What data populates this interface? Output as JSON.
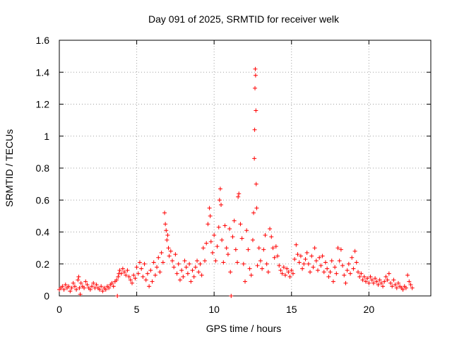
{
  "chart_data": {
    "type": "scatter",
    "title": "Day 091 of 2025, SRMTID for receiver welk",
    "xlabel": "GPS time / hours",
    "ylabel": "SRMTID / TECUs",
    "xlim": [
      0,
      24
    ],
    "ylim": [
      0,
      1.6
    ],
    "x_ticks": [
      "0",
      "5",
      "10",
      "15",
      "20"
    ],
    "x_tick_values": [
      0,
      5,
      10,
      15,
      20
    ],
    "y_ticks": [
      "0",
      "0.2",
      "0.4",
      "0.6",
      "0.8",
      "1",
      "1.2",
      "1.4",
      "1.6"
    ],
    "y_tick_values": [
      0,
      0.2,
      0.4,
      0.6,
      0.8,
      1.0,
      1.2,
      1.4,
      1.6
    ],
    "grid": true,
    "marker": "+",
    "marker_color": "#ff0000",
    "series": [
      {
        "name": "SRMTID",
        "points": [
          [
            0.0,
            0.04
          ],
          [
            0.1,
            0.05
          ],
          [
            0.2,
            0.06
          ],
          [
            0.3,
            0.04
          ],
          [
            0.4,
            0.07
          ],
          [
            0.5,
            0.05
          ],
          [
            0.6,
            0.06
          ],
          [
            0.7,
            0.03
          ],
          [
            0.8,
            0.05
          ],
          [
            0.9,
            0.08
          ],
          [
            1.0,
            0.06
          ],
          [
            1.1,
            0.04
          ],
          [
            1.2,
            0.1
          ],
          [
            1.25,
            0.12
          ],
          [
            1.3,
            0.05
          ],
          [
            1.35,
            0.01
          ],
          [
            1.4,
            0.08
          ],
          [
            1.5,
            0.06
          ],
          [
            1.6,
            0.05
          ],
          [
            1.7,
            0.09
          ],
          [
            1.8,
            0.07
          ],
          [
            1.9,
            0.05
          ],
          [
            2.0,
            0.04
          ],
          [
            2.1,
            0.06
          ],
          [
            2.2,
            0.08
          ],
          [
            2.3,
            0.05
          ],
          [
            2.4,
            0.07
          ],
          [
            2.5,
            0.05
          ],
          [
            2.6,
            0.04
          ],
          [
            2.7,
            0.06
          ],
          [
            2.8,
            0.03
          ],
          [
            2.9,
            0.05
          ],
          [
            3.0,
            0.04
          ],
          [
            3.1,
            0.06
          ],
          [
            3.2,
            0.05
          ],
          [
            3.3,
            0.07
          ],
          [
            3.4,
            0.08
          ],
          [
            3.5,
            0.06
          ],
          [
            3.6,
            0.09
          ],
          [
            3.7,
            0.1
          ],
          [
            3.75,
            0.0
          ],
          [
            3.8,
            0.12
          ],
          [
            3.85,
            0.14
          ],
          [
            3.9,
            0.16
          ],
          [
            4.0,
            0.14
          ],
          [
            4.1,
            0.17
          ],
          [
            4.2,
            0.15
          ],
          [
            4.3,
            0.13
          ],
          [
            4.4,
            0.16
          ],
          [
            4.5,
            0.12
          ],
          [
            4.6,
            0.1
          ],
          [
            4.7,
            0.08
          ],
          [
            4.8,
            0.13
          ],
          [
            4.9,
            0.11
          ],
          [
            5.0,
            0.18
          ],
          [
            5.1,
            0.14
          ],
          [
            5.2,
            0.21
          ],
          [
            5.3,
            0.17
          ],
          [
            5.4,
            0.12
          ],
          [
            5.5,
            0.2
          ],
          [
            5.6,
            0.1
          ],
          [
            5.7,
            0.14
          ],
          [
            5.8,
            0.06
          ],
          [
            5.9,
            0.16
          ],
          [
            6.0,
            0.09
          ],
          [
            6.1,
            0.21
          ],
          [
            6.2,
            0.13
          ],
          [
            6.3,
            0.18
          ],
          [
            6.4,
            0.24
          ],
          [
            6.5,
            0.15
          ],
          [
            6.6,
            0.27
          ],
          [
            6.7,
            0.21
          ],
          [
            6.8,
            0.52
          ],
          [
            6.85,
            0.45
          ],
          [
            6.9,
            0.41
          ],
          [
            6.95,
            0.35
          ],
          [
            7.0,
            0.38
          ],
          [
            7.05,
            0.3
          ],
          [
            7.1,
            0.25
          ],
          [
            7.2,
            0.28
          ],
          [
            7.3,
            0.22
          ],
          [
            7.4,
            0.18
          ],
          [
            7.5,
            0.26
          ],
          [
            7.6,
            0.14
          ],
          [
            7.7,
            0.2
          ],
          [
            7.8,
            0.1
          ],
          [
            7.9,
            0.16
          ],
          [
            8.0,
            0.12
          ],
          [
            8.1,
            0.22
          ],
          [
            8.2,
            0.18
          ],
          [
            8.3,
            0.14
          ],
          [
            8.4,
            0.2
          ],
          [
            8.5,
            0.09
          ],
          [
            8.6,
            0.16
          ],
          [
            8.7,
            0.12
          ],
          [
            8.8,
            0.18
          ],
          [
            8.9,
            0.22
          ],
          [
            9.0,
            0.15
          ],
          [
            9.1,
            0.2
          ],
          [
            9.2,
            0.13
          ],
          [
            9.3,
            0.3
          ],
          [
            9.4,
            0.22
          ],
          [
            9.5,
            0.33
          ],
          [
            9.6,
            0.45
          ],
          [
            9.7,
            0.55
          ],
          [
            9.75,
            0.5
          ],
          [
            9.8,
            0.34
          ],
          [
            9.9,
            0.27
          ],
          [
            10.0,
            0.38
          ],
          [
            10.1,
            0.22
          ],
          [
            10.2,
            0.31
          ],
          [
            10.3,
            0.43
          ],
          [
            10.35,
            0.6
          ],
          [
            10.4,
            0.67
          ],
          [
            10.45,
            0.57
          ],
          [
            10.5,
            0.35
          ],
          [
            10.6,
            0.21
          ],
          [
            10.7,
            0.44
          ],
          [
            10.8,
            0.3
          ],
          [
            10.9,
            0.26
          ],
          [
            11.0,
            0.42
          ],
          [
            11.05,
            0.15
          ],
          [
            11.1,
            0.0
          ],
          [
            11.2,
            0.37
          ],
          [
            11.3,
            0.47
          ],
          [
            11.4,
            0.29
          ],
          [
            11.5,
            0.21
          ],
          [
            11.55,
            0.62
          ],
          [
            11.6,
            0.64
          ],
          [
            11.7,
            0.45
          ],
          [
            11.8,
            0.36
          ],
          [
            11.9,
            0.2
          ],
          [
            12.0,
            0.09
          ],
          [
            12.1,
            0.41
          ],
          [
            12.2,
            0.29
          ],
          [
            12.3,
            0.17
          ],
          [
            12.4,
            0.13
          ],
          [
            12.5,
            0.35
          ],
          [
            12.55,
            0.52
          ],
          [
            12.6,
            0.86
          ],
          [
            12.62,
            1.04
          ],
          [
            12.64,
            1.3
          ],
          [
            12.66,
            1.42
          ],
          [
            12.68,
            1.38
          ],
          [
            12.7,
            1.16
          ],
          [
            12.72,
            0.7
          ],
          [
            12.75,
            0.55
          ],
          [
            12.8,
            0.19
          ],
          [
            12.9,
            0.3
          ],
          [
            13.0,
            0.22
          ],
          [
            13.1,
            0.17
          ],
          [
            13.2,
            0.29
          ],
          [
            13.3,
            0.38
          ],
          [
            13.4,
            0.2
          ],
          [
            13.5,
            0.15
          ],
          [
            13.6,
            0.42
          ],
          [
            13.7,
            0.37
          ],
          [
            13.8,
            0.3
          ],
          [
            13.9,
            0.24
          ],
          [
            14.0,
            0.31
          ],
          [
            14.1,
            0.25
          ],
          [
            14.2,
            0.19
          ],
          [
            14.3,
            0.16
          ],
          [
            14.4,
            0.14
          ],
          [
            14.5,
            0.18
          ],
          [
            14.6,
            0.13
          ],
          [
            14.7,
            0.17
          ],
          [
            14.8,
            0.15
          ],
          [
            14.9,
            0.12
          ],
          [
            15.0,
            0.16
          ],
          [
            15.1,
            0.14
          ],
          [
            15.2,
            0.23
          ],
          [
            15.3,
            0.32
          ],
          [
            15.4,
            0.26
          ],
          [
            15.5,
            0.21
          ],
          [
            15.6,
            0.25
          ],
          [
            15.7,
            0.17
          ],
          [
            15.8,
            0.2
          ],
          [
            15.9,
            0.23
          ],
          [
            16.0,
            0.27
          ],
          [
            16.1,
            0.2
          ],
          [
            16.2,
            0.15
          ],
          [
            16.3,
            0.25
          ],
          [
            16.4,
            0.18
          ],
          [
            16.5,
            0.3
          ],
          [
            16.6,
            0.22
          ],
          [
            16.7,
            0.16
          ],
          [
            16.8,
            0.24
          ],
          [
            16.9,
            0.19
          ],
          [
            17.0,
            0.25
          ],
          [
            17.1,
            0.15
          ],
          [
            17.2,
            0.21
          ],
          [
            17.3,
            0.17
          ],
          [
            17.4,
            0.12
          ],
          [
            17.5,
            0.15
          ],
          [
            17.6,
            0.22
          ],
          [
            17.7,
            0.09
          ],
          [
            17.8,
            0.18
          ],
          [
            17.9,
            0.14
          ],
          [
            18.0,
            0.3
          ],
          [
            18.1,
            0.22
          ],
          [
            18.2,
            0.29
          ],
          [
            18.3,
            0.19
          ],
          [
            18.4,
            0.13
          ],
          [
            18.5,
            0.08
          ],
          [
            18.6,
            0.16
          ],
          [
            18.7,
            0.2
          ],
          [
            18.8,
            0.14
          ],
          [
            18.9,
            0.24
          ],
          [
            19.0,
            0.17
          ],
          [
            19.1,
            0.28
          ],
          [
            19.2,
            0.21
          ],
          [
            19.3,
            0.15
          ],
          [
            19.4,
            0.12
          ],
          [
            19.5,
            0.14
          ],
          [
            19.6,
            0.1
          ],
          [
            19.7,
            0.12
          ],
          [
            19.8,
            0.09
          ],
          [
            19.9,
            0.11
          ],
          [
            20.0,
            0.08
          ],
          [
            20.1,
            0.12
          ],
          [
            20.2,
            0.1
          ],
          [
            20.3,
            0.08
          ],
          [
            20.4,
            0.11
          ],
          [
            20.5,
            0.09
          ],
          [
            20.6,
            0.07
          ],
          [
            20.7,
            0.1
          ],
          [
            20.8,
            0.08
          ],
          [
            20.9,
            0.06
          ],
          [
            21.0,
            0.09
          ],
          [
            21.1,
            0.12
          ],
          [
            21.2,
            0.1
          ],
          [
            21.3,
            0.14
          ],
          [
            21.4,
            0.08
          ],
          [
            21.5,
            0.06
          ],
          [
            21.6,
            0.1
          ],
          [
            21.7,
            0.07
          ],
          [
            21.8,
            0.05
          ],
          [
            21.9,
            0.08
          ],
          [
            22.0,
            0.06
          ],
          [
            22.1,
            0.05
          ],
          [
            22.2,
            0.04
          ],
          [
            22.3,
            0.06
          ],
          [
            22.4,
            0.05
          ],
          [
            22.5,
            0.13
          ],
          [
            22.6,
            0.09
          ],
          [
            22.7,
            0.07
          ],
          [
            22.8,
            0.05
          ]
        ]
      }
    ]
  }
}
